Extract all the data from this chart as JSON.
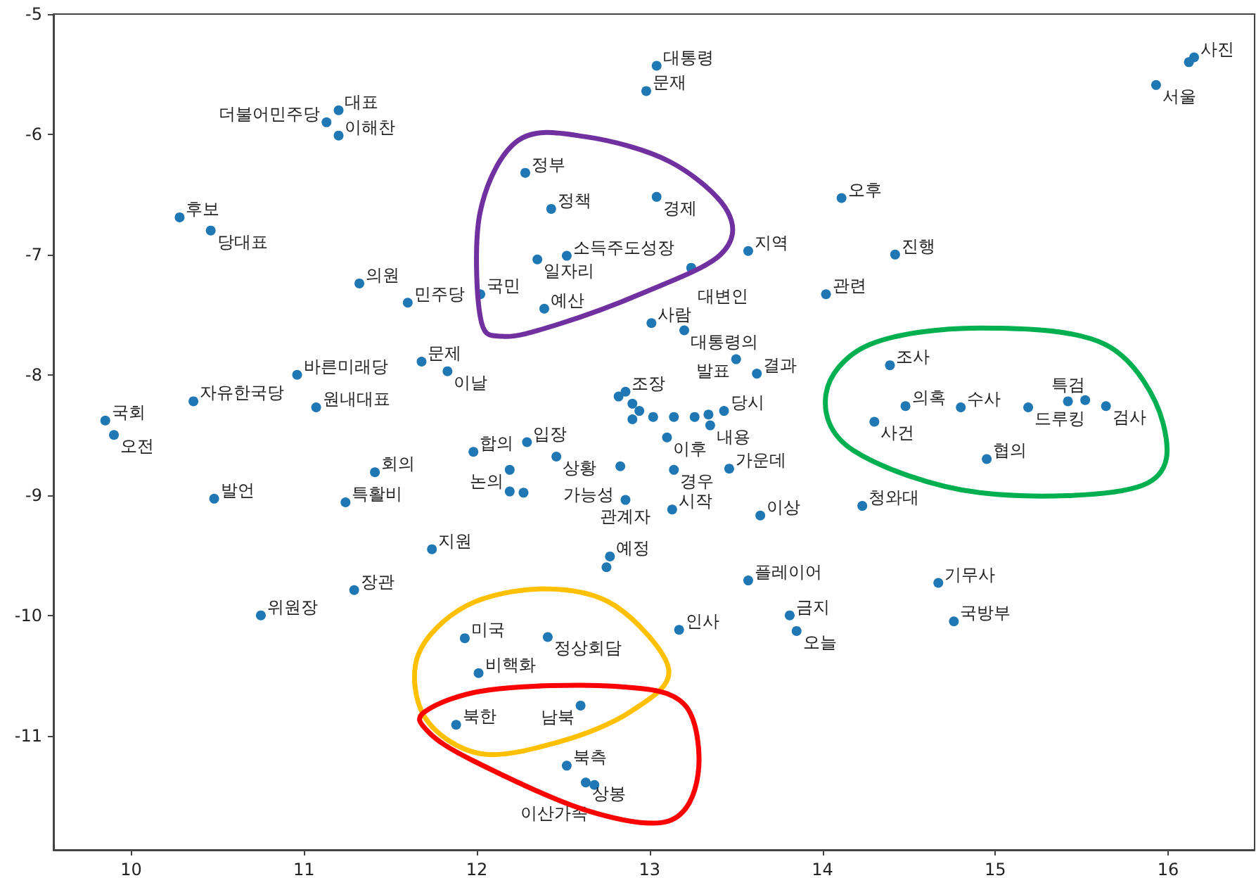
{
  "chart_data": {
    "type": "scatter",
    "marker": "circle",
    "xlim": [
      9.55,
      16.5
    ],
    "ylim": [
      -11.95,
      -5
    ],
    "xticks": [
      10,
      11,
      12,
      13,
      14,
      15,
      16
    ],
    "yticks": [
      -11,
      -10,
      -9,
      -8,
      -7,
      -6,
      -5
    ],
    "series": [
      {
        "color": "#1f77b4",
        "x": [
          13.04,
          12.98,
          15.93,
          16.12,
          16.15,
          11.2,
          11.13,
          11.2,
          12.28,
          12.43,
          13.04,
          14.11,
          10.28,
          10.46,
          12.35,
          12.52,
          13.57,
          14.42,
          13.24,
          11.32,
          12.02,
          11.6,
          14.02,
          12.39,
          13.01,
          13.2,
          13.5,
          11.68,
          13.62,
          11.83,
          10.96,
          14.39,
          10.36,
          11.07,
          14.48,
          14.8,
          15.19,
          15.42,
          15.52,
          15.64,
          14.3,
          9.85,
          9.9,
          12.82,
          12.86,
          12.9,
          12.94,
          12.9,
          13.02,
          13.14,
          13.26,
          13.34,
          13.43,
          13.35,
          13.1,
          11.98,
          12.29,
          12.46,
          11.41,
          12.19,
          12.83,
          13.14,
          13.46,
          14.95,
          10.48,
          11.24,
          12.19,
          12.27,
          12.86,
          13.13,
          13.64,
          14.23,
          11.74,
          12.77,
          12.75,
          13.57,
          14.67,
          11.29,
          10.75,
          13.81,
          14.76,
          13.17,
          13.85,
          11.93,
          12.41,
          12.01,
          12.6,
          11.88,
          12.52,
          12.63,
          12.68
        ],
        "values": [
          -5.43,
          -5.64,
          -5.59,
          -5.4,
          -5.36,
          -5.8,
          -5.9,
          -6.01,
          -6.32,
          -6.62,
          -6.52,
          -6.53,
          -6.69,
          -6.8,
          -7.04,
          -7.01,
          -6.97,
          -7.0,
          -7.11,
          -7.24,
          -7.33,
          -7.4,
          -7.33,
          -7.45,
          -7.57,
          -7.63,
          -7.87,
          -7.89,
          -7.99,
          -7.97,
          -8.0,
          -7.92,
          -8.22,
          -8.27,
          -8.26,
          -8.27,
          -8.27,
          -8.22,
          -8.21,
          -8.26,
          -8.39,
          -8.38,
          -8.5,
          -8.18,
          -8.14,
          -8.24,
          -8.3,
          -8.37,
          -8.35,
          -8.35,
          -8.35,
          -8.33,
          -8.3,
          -8.42,
          -8.52,
          -8.64,
          -8.56,
          -8.68,
          -8.81,
          -8.79,
          -8.76,
          -8.79,
          -8.78,
          -8.7,
          -9.03,
          -9.06,
          -8.97,
          -8.98,
          -9.04,
          -9.12,
          -9.17,
          -9.09,
          -9.45,
          -9.51,
          -9.6,
          -9.71,
          -9.73,
          -9.79,
          -10.0,
          -10.0,
          -10.05,
          -10.12,
          -10.13,
          -10.19,
          -10.18,
          -10.48,
          -10.75,
          -10.91,
          -11.25,
          -11.39,
          -11.41
        ],
        "value_labels": [
          "대통령",
          "문재",
          "서울",
          null,
          "사진",
          "대표",
          "더불어민주당",
          "이해찬",
          "정부",
          "정책",
          "경제",
          "오후",
          "후보",
          "당대표",
          "일자리",
          "소득주도성장",
          "지역",
          "진행",
          "대변인",
          "의원",
          "국민",
          "민주당",
          "관련",
          "예산",
          "사람",
          "대통령의",
          "발표",
          "문제",
          "결과",
          "이날",
          "바른미래당",
          "조사",
          "자유한국당",
          "원내대표",
          "의혹",
          "수사",
          "드루킹",
          "특검",
          null,
          "검사",
          "사건",
          "국회",
          "오전",
          null,
          "조장",
          null,
          null,
          null,
          null,
          null,
          null,
          null,
          "당시",
          "내용",
          "이후",
          "합의",
          "입장",
          "상황",
          "회의",
          "논의",
          "가능성",
          "경우",
          "가운데",
          "협의",
          "발언",
          "특활비",
          null,
          null,
          "관계자",
          "시작",
          "이상",
          "청와대",
          "지원",
          "예정",
          null,
          "플레이어",
          "기무사",
          "장관",
          "위원장",
          "금지",
          "국방부",
          "인사",
          "오늘",
          "미국",
          "정상회담",
          "비핵화",
          "남북",
          "북한",
          "북측",
          "상봉",
          "이산가족"
        ]
      }
    ]
  }
}
